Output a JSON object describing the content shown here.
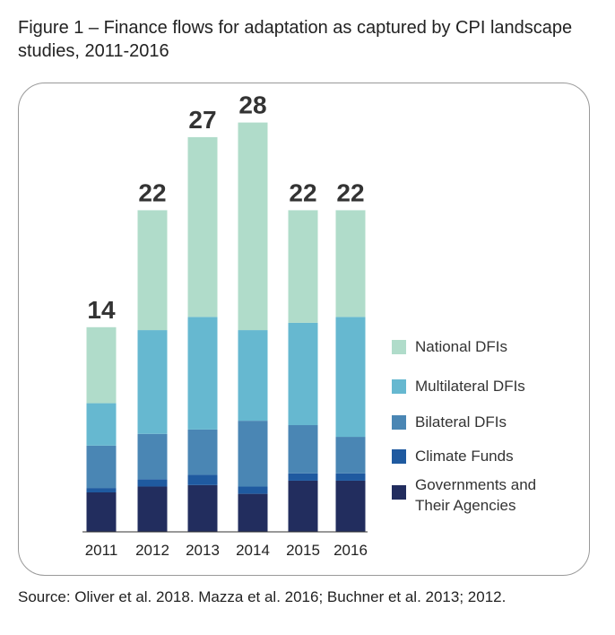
{
  "chart_data": {
    "type": "stacked_bar",
    "title": "Figure 1 – Finance flows for adaptation as captured by CPI landscape studies, 2011-2016",
    "source": "Source: Oliver et al. 2018. Mazza et al. 2016; Buchner et al. 2013; 2012.",
    "categories": [
      "2011",
      "2012",
      "2013",
      "2014",
      "2015",
      "2016"
    ],
    "totals": [
      14,
      22,
      27,
      28,
      22,
      22
    ],
    "series": [
      {
        "name": "Governments and Their Agencies",
        "color": "#222d5e",
        "values": [
          2.7,
          3.1,
          3.2,
          2.6,
          3.5,
          3.5
        ]
      },
      {
        "name": "Climate Funds",
        "color": "#1f5aa0",
        "values": [
          0.3,
          0.5,
          0.7,
          0.5,
          0.5,
          0.5
        ]
      },
      {
        "name": "Bilateral DFIs",
        "color": "#4a86b4",
        "values": [
          2.9,
          3.1,
          3.1,
          4.5,
          3.3,
          2.5
        ]
      },
      {
        "name": "Multilateral DFIs",
        "color": "#66b8d0",
        "values": [
          2.9,
          7.1,
          7.7,
          6.2,
          7.0,
          8.2
        ]
      },
      {
        "name": "National DFIs",
        "color": "#b0dcca",
        "values": [
          5.2,
          8.2,
          12.3,
          14.2,
          7.7,
          7.3
        ]
      }
    ]
  }
}
